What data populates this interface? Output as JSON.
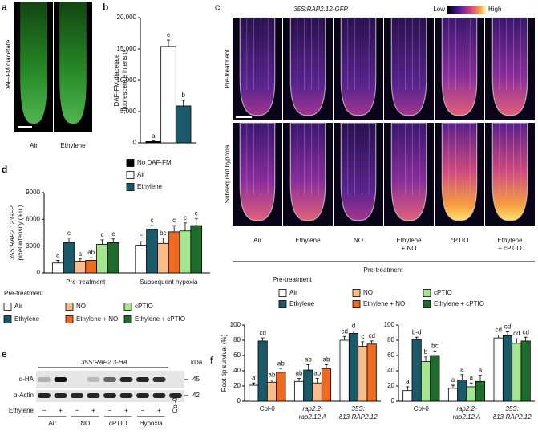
{
  "panel_letters": [
    "a",
    "b",
    "c",
    "d",
    "e",
    "f"
  ],
  "panel_a": {
    "ylabel": "DAF-FM diacetate",
    "labels": [
      "Air",
      "Ethylene"
    ]
  },
  "panel_c": {
    "title": "35S:RAP2.12-GFP",
    "scale": [
      "Low",
      "High"
    ],
    "rows": [
      "Pre-treatment",
      "Subsequent hypoxia"
    ],
    "columns": [
      [
        "Air"
      ],
      [
        "Ethylene"
      ],
      [
        "NO"
      ],
      [
        "Ethylene",
        "+ NO"
      ],
      [
        "cPTIO"
      ],
      [
        "Ethylene",
        "+ cPTIO"
      ]
    ],
    "footer": "Pre-treatment"
  },
  "panel_e": {
    "title": "35S:RAP2.3-HA",
    "unit": "kDa",
    "antibodies": [
      "α-HA",
      "α-Actin"
    ],
    "sizes": [
      "45",
      "42"
    ],
    "treatment": "Ethylene",
    "signs": [
      "−",
      "+",
      "−",
      "+",
      "−",
      "+",
      "−",
      "+"
    ],
    "groups": [
      "Air",
      "NO",
      "cPTIO",
      "Hypoxia"
    ],
    "control": "Col-0"
  },
  "chart_data": [
    {
      "type": "bar",
      "ylabel": [
        "DAF-FM diacetate",
        "fluorescence intensity"
      ],
      "categories": [
        null
      ],
      "ylim": [
        0,
        20000
      ],
      "yticks": [
        0,
        {
          "value": 5000,
          "label": "5,000"
        },
        {
          "value": 10000,
          "label": "10,000"
        },
        {
          "value": 15000,
          "label": "15,000"
        },
        {
          "value": 20000,
          "label": "20,000"
        }
      ],
      "series": [
        {
          "name": "No DAF-FM",
          "color": "#000000",
          "values": [
            200
          ],
          "errors": [
            100
          ],
          "letters": [
            "a"
          ]
        },
        {
          "name": "Air",
          "color": "#ffffff",
          "values": [
            15400
          ],
          "errors": [
            1000
          ],
          "letters": [
            "c"
          ]
        },
        {
          "name": "Ethylene",
          "color": "#1c5a6b",
          "values": [
            5900
          ],
          "errors": [
            900
          ],
          "letters": [
            "b"
          ]
        }
      ]
    },
    {
      "type": "bar",
      "ylabel": [
        "35S:RAP2.12:GFP",
        "pixel intensity (a.u.)"
      ],
      "legend_title": "Pre-treatment",
      "categories": [
        "Pre-treatment",
        "Subsequent hypoxia"
      ],
      "ylim": [
        0,
        9000
      ],
      "yticks": [
        0,
        3000,
        6000,
        9000
      ],
      "series": [
        {
          "name": "Air",
          "color": "#ffffff",
          "values": [
            1100,
            3100
          ],
          "errors": [
            300,
            400
          ],
          "letters": [
            "a",
            "c"
          ]
        },
        {
          "name": "Ethylene",
          "color": "#1c5a6b",
          "values": [
            3400,
            4900
          ],
          "errors": [
            500,
            400
          ],
          "letters": [
            "c",
            "c"
          ]
        },
        {
          "name": "NO",
          "color": "#f9bd8c",
          "values": [
            1300,
            3300
          ],
          "errors": [
            250,
            600
          ],
          "letters": [
            "a",
            "bc"
          ]
        },
        {
          "name": "Ethylene + NO",
          "color": "#ef6a1e",
          "values": [
            1400,
            4600
          ],
          "errors": [
            300,
            700
          ],
          "letters": [
            "ab",
            "c"
          ]
        },
        {
          "name": "cPTIO",
          "color": "#a4e58f",
          "values": [
            3200,
            4700
          ],
          "errors": [
            500,
            900
          ],
          "letters": [
            "c",
            "c"
          ]
        },
        {
          "name": "Ethylene + cPTIO",
          "color": "#1f6b2c",
          "values": [
            3400,
            5300
          ],
          "errors": [
            400,
            800
          ],
          "letters": [
            "c",
            "c"
          ]
        }
      ]
    },
    {
      "type": "bar",
      "ylabel": [
        "Root tip survival (%)"
      ],
      "legend_title": "Pre-treatment",
      "categories": [
        [
          "Col-0"
        ],
        [
          "rap2.2-",
          "rap2.12 A"
        ],
        [
          "35S:",
          "δ13-RAP2.12"
        ]
      ],
      "ylim": [
        0,
        100
      ],
      "yticks": [
        0,
        20,
        40,
        60,
        80,
        100
      ],
      "series": [
        {
          "name": "Air",
          "color": "#ffffff",
          "values": [
            21,
            26,
            80
          ],
          "errors": [
            3,
            4,
            5
          ],
          "letters": [
            "a",
            "ab",
            "cd"
          ]
        },
        {
          "name": "Ethylene",
          "color": "#1c5a6b",
          "values": [
            79,
            41,
            89
          ],
          "errors": [
            4,
            7,
            3
          ],
          "letters": [
            "cd",
            "ab",
            "d"
          ]
        },
        {
          "name": "NO",
          "color": "#f9bd8c",
          "values": [
            25,
            24,
            72
          ],
          "errors": [
            3,
            6,
            6
          ],
          "letters": [
            "ab",
            "ab",
            "c"
          ]
        },
        {
          "name": "Ethylene + NO",
          "color": "#ef6a1e",
          "values": [
            38,
            43,
            75
          ],
          "errors": [
            5,
            5,
            4
          ],
          "letters": [
            "ab",
            "ab",
            "cd"
          ]
        }
      ]
    },
    {
      "type": "bar",
      "categories": [
        [
          "Col-0"
        ],
        [
          "rap2.2-",
          "rap2.12 A"
        ],
        [
          "35S:",
          "δ13-RAP2.12"
        ]
      ],
      "ylim": [
        0,
        100
      ],
      "yticks": [
        0,
        20,
        40,
        60,
        80,
        100
      ],
      "series": [
        {
          "name": "Air",
          "color": "#ffffff",
          "values": [
            14,
            17,
            83
          ],
          "errors": [
            5,
            4,
            4
          ],
          "letters": [
            "a",
            "a",
            "cd"
          ]
        },
        {
          "name": "Ethylene",
          "color": "#1c5a6b",
          "values": [
            81,
            28,
            86
          ],
          "errors": [
            3,
            7,
            5
          ],
          "letters": [
            "b-d",
            "a",
            "cd"
          ]
        },
        {
          "name": "cPTIO",
          "color": "#a4e58f",
          "values": [
            52,
            19,
            76
          ],
          "errors": [
            6,
            5,
            6
          ],
          "letters": [
            "b",
            "a",
            "cd"
          ]
        },
        {
          "name": "Ethylene + cPTIO",
          "color": "#1f6b2c",
          "values": [
            60,
            26,
            79
          ],
          "errors": [
            6,
            8,
            5
          ],
          "letters": [
            "bc",
            "a",
            "cd"
          ]
        }
      ]
    }
  ]
}
